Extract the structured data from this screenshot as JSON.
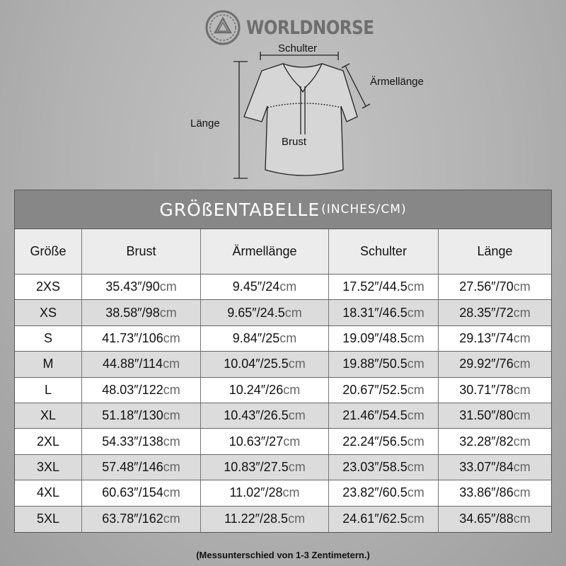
{
  "brand": {
    "name": "WORLDNORSE"
  },
  "diagram": {
    "shoulder": "Schulter",
    "sleeve": "Ärmellänge",
    "length": "Länge",
    "chest": "Brust"
  },
  "table": {
    "title": "GRÖßENTABELLE",
    "title_unit": "(INCHES/CM)",
    "headers": [
      "Größe",
      "Brust",
      "Ärmellänge",
      "Schulter",
      "Länge"
    ],
    "unit": "cm",
    "rows": [
      {
        "size": "2XS",
        "cells": [
          "35.43″/90",
          "9.45″/24",
          "17.52″/44.5",
          "27.56″/70"
        ]
      },
      {
        "size": "XS",
        "cells": [
          "38.58″/98",
          "9.65″/24.5",
          "18.31″/46.5",
          "28.35″/72"
        ]
      },
      {
        "size": "S",
        "cells": [
          "41.73″/106",
          "9.84″/25",
          "19.09″/48.5",
          "29.13″/74"
        ]
      },
      {
        "size": "M",
        "cells": [
          "44.88″/114",
          "10.04″/25.5",
          "19.88″/50.5",
          "29.92″/76"
        ]
      },
      {
        "size": "L",
        "cells": [
          "48.03″/122",
          "10.24″/26",
          "20.67″/52.5",
          "30.71″/78"
        ]
      },
      {
        "size": "XL",
        "cells": [
          "51.18″/130",
          "10.43″/26.5",
          "21.46″/54.5",
          "31.50″/80"
        ]
      },
      {
        "size": "2XL",
        "cells": [
          "54.33″/138",
          "10.63″/27",
          "22.24″/56.5",
          "32.28″/82"
        ]
      },
      {
        "size": "3XL",
        "cells": [
          "57.48″/146",
          "10.83″/27.5",
          "23.03″/58.5",
          "33.07″/84"
        ]
      },
      {
        "size": "4XL",
        "cells": [
          "60.63″/154",
          "11.02″/28",
          "23.82″/60.5",
          "33.86″/86"
        ]
      },
      {
        "size": "5XL",
        "cells": [
          "63.78″/162",
          "11.22″/28.5",
          "24.61″/62.5",
          "34.65″/88"
        ]
      }
    ]
  },
  "note": "(Messunterschied von 1-3 Zentimetern.)"
}
